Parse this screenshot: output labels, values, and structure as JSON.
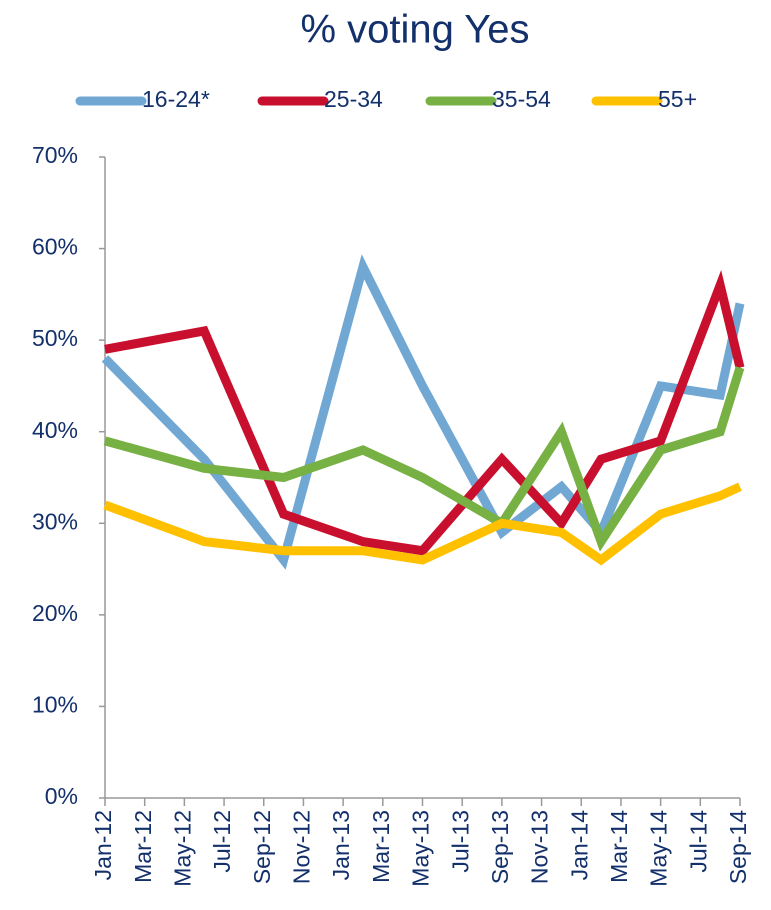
{
  "chart_data": {
    "type": "line",
    "title": "% voting Yes",
    "x": [
      "2012-01",
      "2012-06",
      "2012-10",
      "2013-02",
      "2013-05",
      "2013-09",
      "2013-12",
      "2014-02",
      "2014-05",
      "2014-08",
      "2014-09"
    ],
    "series": [
      {
        "name": "16-24*",
        "color": "#71a7d3",
        "values": [
          48,
          37,
          26,
          58,
          45,
          29,
          34,
          29,
          45,
          44,
          54
        ]
      },
      {
        "name": "25-34",
        "color": "#c8102e",
        "values": [
          49,
          51,
          31,
          28,
          27,
          37,
          30,
          37,
          39,
          56,
          47
        ]
      },
      {
        "name": "35-54",
        "color": "#77b043",
        "values": [
          39,
          36,
          35,
          38,
          35,
          30,
          40,
          28,
          38,
          40,
          47
        ]
      },
      {
        "name": "55+",
        "color": "#ffc000",
        "values": [
          32,
          28,
          27,
          27,
          26,
          30,
          29,
          26,
          31,
          33,
          34
        ]
      }
    ],
    "xlim": [
      "2012-01",
      "2014-09"
    ],
    "xticks": [
      {
        "value": "2012-01",
        "label": "Jan-12"
      },
      {
        "value": "2012-03",
        "label": "Mar-12"
      },
      {
        "value": "2012-05",
        "label": "May-12"
      },
      {
        "value": "2012-07",
        "label": "Jul-12"
      },
      {
        "value": "2012-09",
        "label": "Sep-12"
      },
      {
        "value": "2012-11",
        "label": "Nov-12"
      },
      {
        "value": "2013-01",
        "label": "Jan-13"
      },
      {
        "value": "2013-03",
        "label": "Mar-13"
      },
      {
        "value": "2013-05",
        "label": "May-13"
      },
      {
        "value": "2013-07",
        "label": "Jul-13"
      },
      {
        "value": "2013-09",
        "label": "Sep-13"
      },
      {
        "value": "2013-11",
        "label": "Nov-13"
      },
      {
        "value": "2014-01",
        "label": "Jan-14"
      },
      {
        "value": "2014-03",
        "label": "Mar-14"
      },
      {
        "value": "2014-05",
        "label": "May-14"
      },
      {
        "value": "2014-07",
        "label": "Jul-14"
      },
      {
        "value": "2014-09",
        "label": "Sep-14"
      }
    ],
    "ylim": [
      0,
      70
    ],
    "yticks": [
      {
        "value": 0,
        "label": "0%"
      },
      {
        "value": 10,
        "label": "10%"
      },
      {
        "value": 20,
        "label": "20%"
      },
      {
        "value": 30,
        "label": "30%"
      },
      {
        "value": 40,
        "label": "40%"
      },
      {
        "value": 50,
        "label": "50%"
      },
      {
        "value": 60,
        "label": "60%"
      },
      {
        "value": 70,
        "label": "70%"
      }
    ],
    "grid": false,
    "legend": "top"
  }
}
